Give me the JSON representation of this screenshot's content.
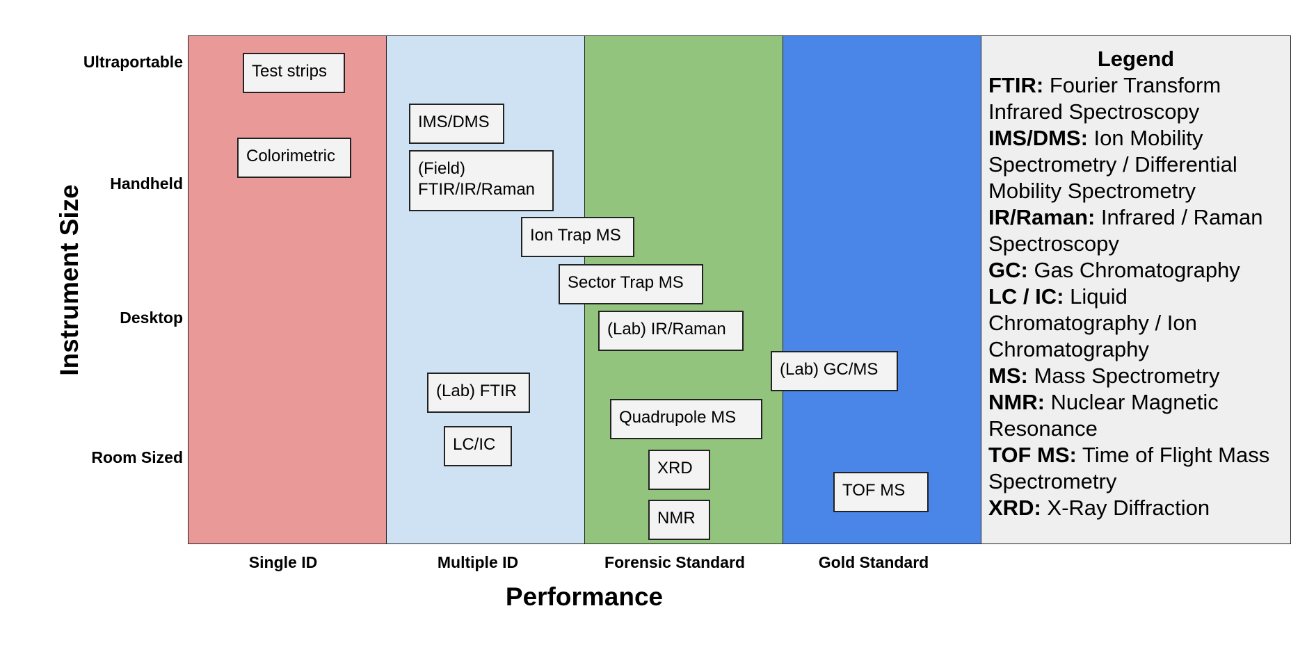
{
  "axes": {
    "y_title": "Instrument Size",
    "x_title": "Performance",
    "y_levels": [
      "Ultraportable",
      "Handheld",
      "Desktop",
      "Room Sized"
    ],
    "x_levels": [
      "Single ID",
      "Multiple ID",
      "Forensic Standard",
      "Gold Standard"
    ]
  },
  "bands": {
    "colors": [
      "#ea9999",
      "#cfe2f3",
      "#93c47d",
      "#4a86e8"
    ]
  },
  "techniques": [
    {
      "label": "Test strips"
    },
    {
      "label": "Colorimetric"
    },
    {
      "label": "IMS/DMS"
    },
    {
      "label": "(Field)",
      "label2": "FTIR/IR/Raman"
    },
    {
      "label": "Ion Trap MS"
    },
    {
      "label": "Sector Trap MS"
    },
    {
      "label": "(Lab) IR/Raman"
    },
    {
      "label": "(Lab) GC/MS"
    },
    {
      "label": "(Lab) FTIR"
    },
    {
      "label": "Quadrupole MS"
    },
    {
      "label": "LC/IC"
    },
    {
      "label": "XRD"
    },
    {
      "label": "TOF MS"
    },
    {
      "label": "NMR"
    }
  ],
  "legend": {
    "title": "Legend",
    "entries": [
      {
        "abbr": "FTIR:",
        "text": " Fourier Transform Infrared Spectroscopy"
      },
      {
        "abbr": "IMS/DMS:",
        "text": " Ion Mobility Spectrometry / Differential Mobility Spectrometry"
      },
      {
        "abbr": "IR/Raman:",
        "text": " Infrared / Raman Spectroscopy"
      },
      {
        "abbr": "GC:",
        "text": " Gas Chromatography"
      },
      {
        "abbr": "LC / IC:",
        "text": " Liquid Chromatography / Ion Chromatography"
      },
      {
        "abbr": "MS:",
        "text": " Mass Spectrometry"
      },
      {
        "abbr": "NMR:",
        "text": " Nuclear Magnetic Resonance"
      },
      {
        "abbr": "TOF MS:",
        "text": " Time of Flight Mass Spectrometry"
      },
      {
        "abbr": "XRD:",
        "text": " X-Ray Diffraction"
      }
    ]
  }
}
